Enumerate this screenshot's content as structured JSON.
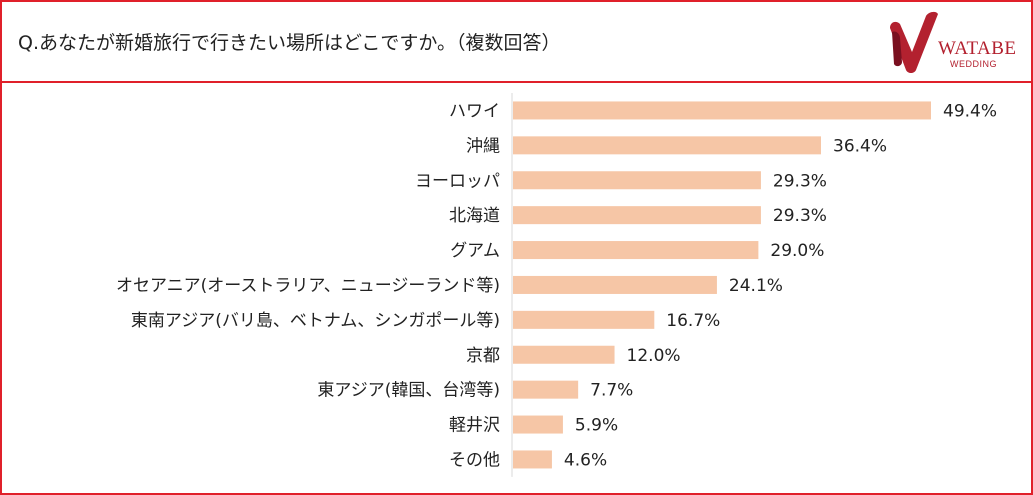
{
  "header": {
    "question": "Q.あなたが新婚旅行で行きたい場所はどこですか。（複数回答）"
  },
  "logo": {
    "name": "WATABE",
    "sub": "WEDDING",
    "color": "#b3212f"
  },
  "colors": {
    "frame": "#e0202a",
    "bar": "#f6c6a6",
    "axis": "#d9d9d9",
    "text": "#222222"
  },
  "chart_data": {
    "type": "bar",
    "orientation": "horizontal",
    "categories": [
      "ハワイ",
      "沖縄",
      "ヨーロッパ",
      "北海道",
      "グアム",
      "オセアニア(オーストラリア、ニュージーランド等)",
      "東南アジア(バリ島、ベトナム、シンガポール等)",
      "京都",
      "東アジア(韓国、台湾等)",
      "軽井沢",
      "その他"
    ],
    "values": [
      49.4,
      36.4,
      29.3,
      29.3,
      29.0,
      24.1,
      16.7,
      12.0,
      7.7,
      5.9,
      4.6
    ],
    "data_labels": [
      "49.4%",
      "36.4%",
      "29.3%",
      "29.3%",
      "29.0%",
      "24.1%",
      "16.7%",
      "12.0%",
      "7.7%",
      "5.9%",
      "4.6%"
    ],
    "unit": "%",
    "grid": false,
    "legend": "none"
  }
}
